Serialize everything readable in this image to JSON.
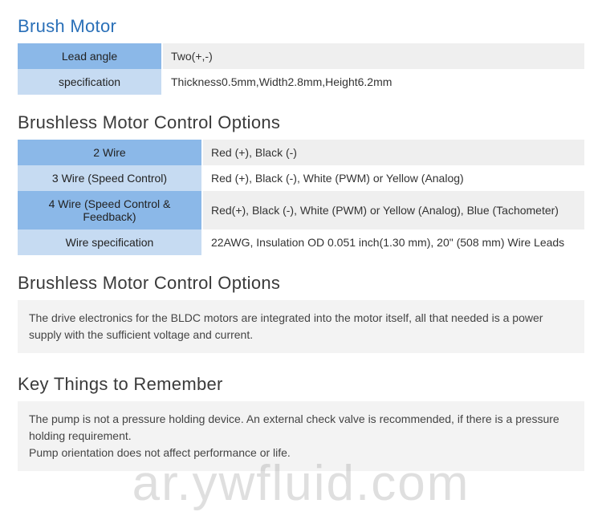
{
  "sections": {
    "brush_motor": {
      "title": "Brush Motor",
      "rows": [
        {
          "label": "Lead angle",
          "value": "Two(+,-)"
        },
        {
          "label": "specification",
          "value": "Thickness0.5mm,Width2.8mm,Height6.2mm"
        }
      ]
    },
    "brushless_table": {
      "title": "Brushless Motor Control Options",
      "rows": [
        {
          "label": "2 Wire",
          "value": "Red (+), Black (-)"
        },
        {
          "label": "3 Wire (Speed Control)",
          "value": "Red (+), Black (-), White (PWM) or Yellow (Analog)"
        },
        {
          "label": "4 Wire (Speed Control & Feedback)",
          "value": "Red(+), Black (-), White (PWM) or Yellow (Analog), Blue (Tachometer)"
        },
        {
          "label": "Wire specification",
          "value": "22AWG, Insulation OD 0.051 inch(1.30 mm), 20\" (508 mm) Wire Leads"
        }
      ]
    },
    "brushless_text": {
      "title": "Brushless Motor Control Options",
      "body": "The drive electronics for the BLDC motors are integrated into the motor itself, all that needed is a power supply with the sufficient voltage and current."
    },
    "key_things": {
      "title": "Key Things to Remember",
      "body1": "The pump is not a pressure holding device. An external check valve is recommended, if there is a pressure holding requirement.",
      "body2": "Pump orientation does not affect performance or life."
    }
  },
  "watermark": "ar.ywfluid.com",
  "colors": {
    "blue_dark": "#8bb8e8",
    "blue_light": "#c6dbf2",
    "gray_row": "#efefef",
    "title_blue": "#2a70b8",
    "textbox_bg": "#f3f3f3"
  }
}
